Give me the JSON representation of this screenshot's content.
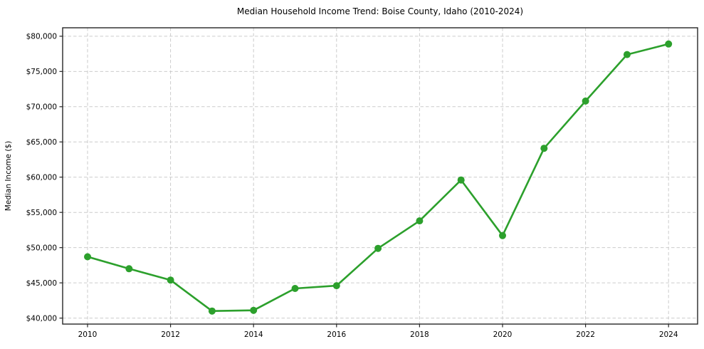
{
  "chart_data": {
    "type": "line",
    "title": "Median Household Income Trend: Boise County, Idaho (2010-2024)",
    "xlabel": "",
    "ylabel": "Median Income ($)",
    "series_name": "Median Household Income",
    "x": [
      2010,
      2011,
      2012,
      2013,
      2014,
      2015,
      2016,
      2017,
      2018,
      2019,
      2020,
      2021,
      2022,
      2023,
      2024
    ],
    "values": [
      48700,
      47000,
      45400,
      41000,
      41100,
      44200,
      44600,
      49900,
      53800,
      59600,
      51700,
      64100,
      70800,
      77400,
      78900
    ],
    "x_ticks": [
      2010,
      2012,
      2014,
      2016,
      2018,
      2020,
      2022,
      2024
    ],
    "x_tick_labels": [
      "2010",
      "2012",
      "2014",
      "2016",
      "2018",
      "2020",
      "2022",
      "2024"
    ],
    "y_ticks": [
      40000,
      45000,
      50000,
      55000,
      60000,
      65000,
      70000,
      75000,
      80000
    ],
    "y_tick_labels": [
      "$40,000",
      "$45,000",
      "$50,000",
      "$55,000",
      "$60,000",
      "$65,000",
      "$70,000",
      "$75,000",
      "$80,000"
    ],
    "xlim": [
      2009.4,
      2024.7
    ],
    "ylim": [
      39150,
      81200
    ],
    "grid": true,
    "legend": "none",
    "line_color": "#2ca02c",
    "marker_color": "#2ca02c",
    "grid_color": "#cccccc",
    "spine_color": "#262626",
    "text_color": "#000000",
    "background_color": "#ffffff"
  }
}
